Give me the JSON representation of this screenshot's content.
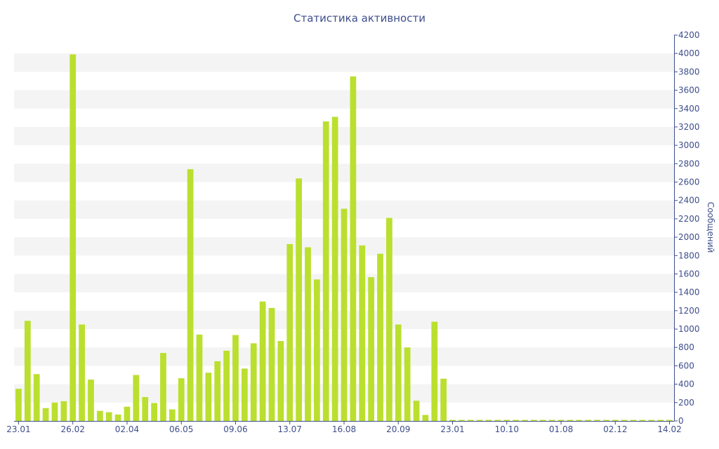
{
  "chart_data": {
    "type": "bar",
    "title": "Статистика активности",
    "xlabel": "",
    "ylabel": "Сообщений",
    "ylim": [
      0,
      4200
    ],
    "yticks": [
      0,
      200,
      400,
      600,
      800,
      1000,
      1200,
      1400,
      1600,
      1800,
      2000,
      2200,
      2400,
      2600,
      2800,
      3000,
      3200,
      3400,
      3600,
      3800,
      4000,
      4200
    ],
    "y_axis_position": "right",
    "grid": "horizontal-bands",
    "legend": "none",
    "x_tick_labels": [
      {
        "index": 0,
        "label": "23.01"
      },
      {
        "index": 6,
        "label": "26.02"
      },
      {
        "index": 12,
        "label": "02.04"
      },
      {
        "index": 18,
        "label": "06.05"
      },
      {
        "index": 24,
        "label": "09.06"
      },
      {
        "index": 30,
        "label": "13.07"
      },
      {
        "index": 36,
        "label": "16.08"
      },
      {
        "index": 42,
        "label": "20.09"
      },
      {
        "index": 48,
        "label": "23.01"
      },
      {
        "index": 54,
        "label": "10.10"
      },
      {
        "index": 60,
        "label": "01.08"
      },
      {
        "index": 66,
        "label": "02.12"
      },
      {
        "index": 72,
        "label": "14.02"
      }
    ],
    "series": [
      {
        "color": "#bbdf2f",
        "values": [
          350,
          1090,
          510,
          140,
          200,
          215,
          3990,
          1050,
          450,
          110,
          95,
          70,
          155,
          500,
          260,
          195,
          740,
          125,
          465,
          2740,
          940,
          525,
          650,
          765,
          935,
          570,
          845,
          1300,
          1230,
          870,
          1925,
          2640,
          1890,
          1540,
          3260,
          3310,
          2310,
          3750,
          1910,
          1565,
          1820,
          2210,
          1050,
          800,
          220,
          65,
          1080,
          460,
          0,
          0,
          0,
          0,
          0,
          0,
          0,
          0,
          0,
          0,
          0,
          0,
          0,
          0,
          0,
          0,
          0,
          0,
          0,
          0,
          0,
          0,
          0,
          0,
          0
        ]
      }
    ]
  },
  "colors": {
    "axis": "#3e4e8c",
    "band": "#f4f4f4",
    "bar": "#bbdf2f"
  }
}
